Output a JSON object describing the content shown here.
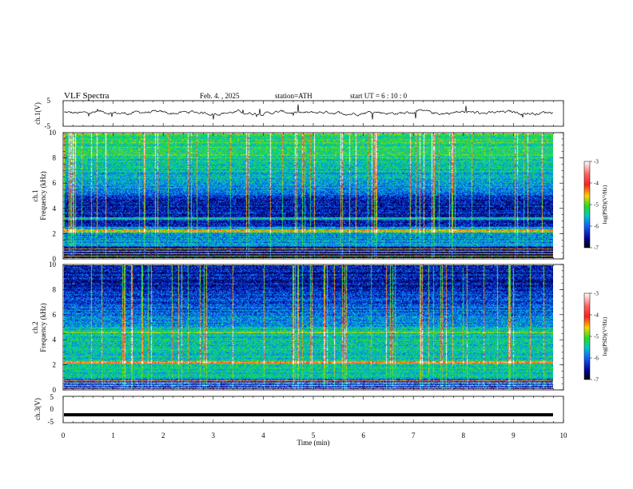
{
  "header": {
    "title": "VLF  Spectra",
    "date": "Feb. 4. , 2025",
    "station": "station=ATH",
    "start": "start  UT  =   6  : 10 : 0"
  },
  "colorbar": {
    "label": "log(PSD)(V²/Hz)",
    "ticks": [
      "-3",
      "-4",
      "-5",
      "-6",
      "-7"
    ],
    "colors": [
      "#ffffff",
      "#ff3030",
      "#ffd000",
      "#20e020",
      "#00c8c8",
      "#1060ff",
      "#000090",
      "#000000"
    ]
  },
  "chart_data": [
    {
      "type": "line",
      "name": "ch.1",
      "ylabel": "ch.1(V)",
      "ylim": [
        -5,
        5
      ],
      "yticks": [
        "5",
        "-5"
      ],
      "xlim": [
        0,
        10
      ],
      "note_level": 0.3
    },
    {
      "type": "heatmap",
      "name": "ch.1",
      "ylabel_channel": "ch.1",
      "ylabel": "Frequency  (kHz)",
      "ylim": [
        0,
        10
      ],
      "yticks": [
        "10",
        "8",
        "6",
        "4",
        "2",
        "0"
      ],
      "xlim": [
        0,
        10
      ],
      "zlim": [
        -7,
        -3
      ]
    },
    {
      "type": "heatmap",
      "name": "ch.2",
      "ylabel_channel": "ch.2",
      "ylabel": "Frequency  (kHz)",
      "ylim": [
        0,
        10
      ],
      "yticks": [
        "10",
        "8",
        "6",
        "4",
        "2",
        "0"
      ],
      "xlim": [
        0,
        10
      ],
      "zlim": [
        -7,
        -3
      ]
    },
    {
      "type": "line",
      "name": "ch.3",
      "ylabel": "ch.3(V)",
      "ylim": [
        -5,
        5
      ],
      "yticks": [
        "5",
        "0",
        "-5"
      ],
      "xlim": [
        0,
        10
      ],
      "note_level": -2
    }
  ],
  "xaxis": {
    "label": "Time  (min)",
    "ticks": [
      "0",
      "1",
      "2",
      "3",
      "4",
      "5",
      "6",
      "7",
      "8",
      "9",
      "10"
    ]
  }
}
